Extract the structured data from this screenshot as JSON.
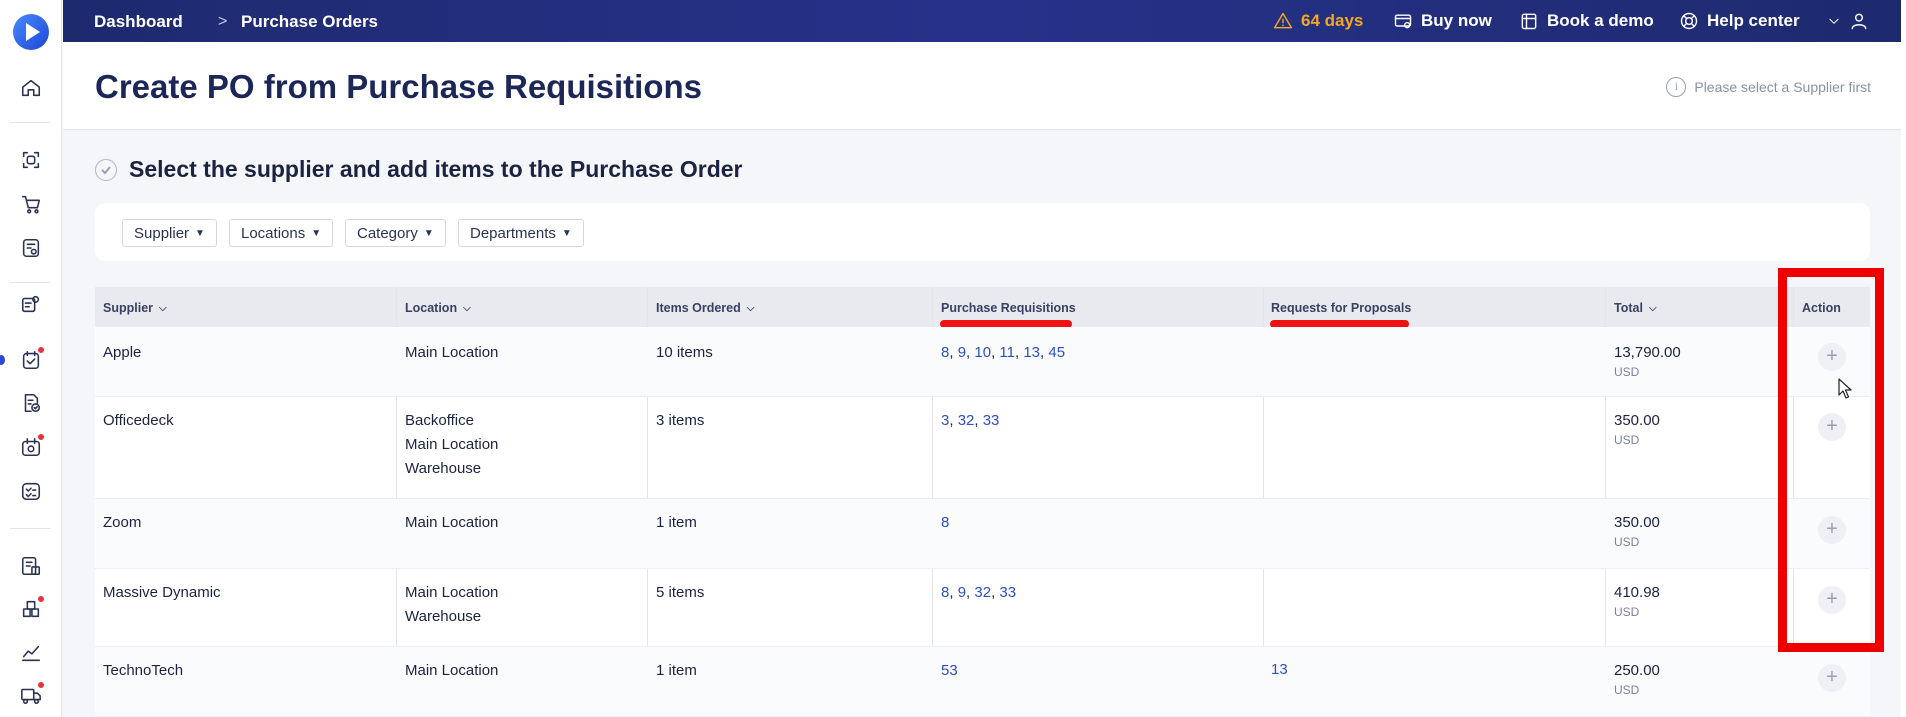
{
  "topbar": {
    "breadcrumb": [
      "Dashboard",
      "Purchase Orders"
    ],
    "breadcrumb_separator": ">",
    "trial": "64 days",
    "buy_now": "Buy now",
    "book_demo": "Book a demo",
    "help_center": "Help center"
  },
  "sidebar": {
    "items": [
      {
        "icon": "home-icon",
        "badge": false
      },
      {
        "icon": "scan-icon",
        "badge": false
      },
      {
        "icon": "cart-icon",
        "badge": false
      },
      {
        "icon": "requisition-icon",
        "badge": false
      },
      {
        "icon": "users-list-icon",
        "badge": false
      },
      {
        "icon": "purchase-order-icon",
        "badge": true,
        "active": true
      },
      {
        "icon": "invoice-check-icon",
        "badge": false
      },
      {
        "icon": "receipt-icon",
        "badge": true
      },
      {
        "icon": "checklist-icon",
        "badge": false
      },
      {
        "icon": "budget-icon",
        "badge": false
      },
      {
        "icon": "inventory-icon",
        "badge": true
      },
      {
        "icon": "chart-icon",
        "badge": false
      },
      {
        "icon": "delivery-icon",
        "badge": true
      }
    ]
  },
  "page": {
    "title": "Create PO from Purchase Requisitions",
    "hint": "Please select a Supplier first",
    "section_title": "Select the supplier and add items to the Purchase Order"
  },
  "filters": [
    "Supplier",
    "Locations",
    "Category",
    "Departments"
  ],
  "table": {
    "headers": {
      "supplier": "Supplier",
      "location": "Location",
      "items": "Items Ordered",
      "requisitions": "Purchase Requisitions",
      "proposals": "Requests for Proposals",
      "total": "Total",
      "action": "Action"
    },
    "rows": [
      {
        "supplier": "Apple",
        "locations": [
          "Main Location"
        ],
        "items": "10 items",
        "requisitions": [
          "8",
          "9",
          "10",
          "11",
          "13",
          "45"
        ],
        "proposals": [],
        "total": "13,790.00",
        "currency": "USD"
      },
      {
        "supplier": "Officedeck",
        "locations": [
          "Backoffice",
          "Main Location",
          "Warehouse"
        ],
        "items": "3 items",
        "requisitions": [
          "3",
          "32",
          "33"
        ],
        "proposals": [],
        "total": "350.00",
        "currency": "USD"
      },
      {
        "supplier": "Zoom",
        "locations": [
          "Main Location"
        ],
        "items": "1 item",
        "requisitions": [
          "8"
        ],
        "proposals": [],
        "total": "350.00",
        "currency": "USD"
      },
      {
        "supplier": "Massive Dynamic",
        "locations": [
          "Main Location",
          "Warehouse"
        ],
        "items": "5 items",
        "requisitions": [
          "8",
          "9",
          "32",
          "33"
        ],
        "proposals": [],
        "total": "410.98",
        "currency": "USD"
      },
      {
        "supplier": "TechnoTech",
        "locations": [
          "Main Location"
        ],
        "items": "1 item",
        "requisitions": [
          "53"
        ],
        "proposals": [
          "13"
        ],
        "total": "250.00",
        "currency": "USD"
      }
    ],
    "add_label": "+"
  },
  "colors": {
    "topbar": "#1e2a6e",
    "link": "#2d4fc0",
    "warning": "#f5a623",
    "annotation": "#ee0000"
  }
}
